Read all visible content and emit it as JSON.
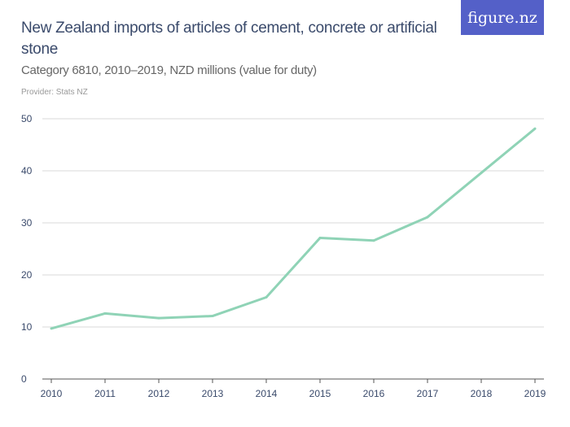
{
  "title": "New Zealand imports of articles of cement, concrete or artificial stone",
  "subtitle": "Category 6810, 2010–2019, NZD millions (value for duty)",
  "provider": "Provider: Stats NZ",
  "logo": "figure.nz",
  "colors": {
    "line": "#8fd3b6",
    "logo_bg": "#5460c8",
    "text": "#3a4a6b"
  },
  "chart_data": {
    "type": "line",
    "title": "New Zealand imports of articles of cement, concrete or artificial stone",
    "categories": [
      "2010",
      "2011",
      "2012",
      "2013",
      "2014",
      "2015",
      "2016",
      "2017",
      "2018",
      "2019"
    ],
    "values": [
      9.7,
      12.6,
      11.7,
      12.1,
      15.7,
      27.1,
      26.6,
      31.1,
      39.6,
      48.1
    ],
    "yticks": [
      0,
      10,
      20,
      30,
      40,
      50
    ],
    "ylim": [
      0,
      50
    ],
    "grid": true
  }
}
